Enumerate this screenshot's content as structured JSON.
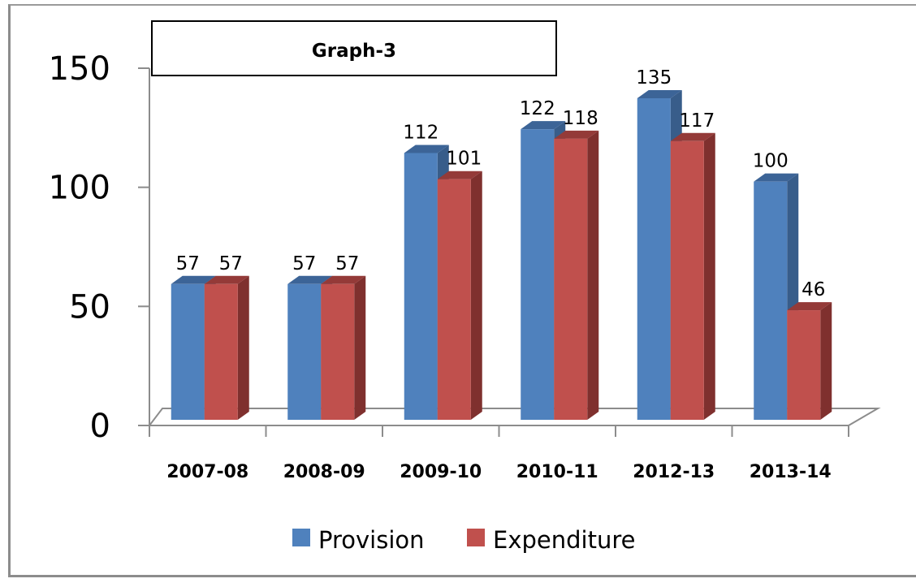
{
  "chart_data": {
    "type": "bar",
    "style": "3d-clustered-column",
    "title": "Graph-3",
    "xlabel": "",
    "ylabel": "",
    "categories": [
      "2007-08",
      "2008-09",
      "2009-10",
      "2010-11",
      "2012-13",
      "2013-14"
    ],
    "series": [
      {
        "name": "Provision",
        "color": "#4F81BD",
        "side_color": "#385D8A",
        "top_color": "#3C6497",
        "values": [
          57,
          57,
          112,
          122,
          135,
          100
        ]
      },
      {
        "name": "Expenditure",
        "color": "#C0504D",
        "side_color": "#7F302E",
        "top_color": "#943A38",
        "values": [
          57,
          57,
          101,
          118,
          117,
          46
        ]
      }
    ],
    "ylim": [
      0,
      150
    ],
    "yticks": [
      0,
      50,
      100,
      150
    ],
    "ytick_labels": [
      "0",
      "50",
      "100",
      "150"
    ],
    "grid": false,
    "data_labels": true,
    "legend": {
      "placement": "bottom",
      "entries": [
        "Provision",
        "Expenditure"
      ]
    },
    "axis_color": "#8C8C8C"
  }
}
